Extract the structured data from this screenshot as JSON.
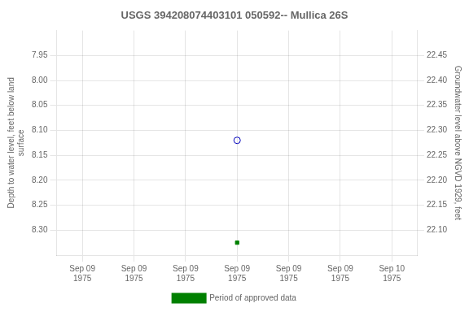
{
  "chart_data": {
    "type": "scatter",
    "title": "USGS 394208074403101 050592-- Mullica 26S",
    "y_label": "Depth to water level, feet below land\nsurface",
    "y2_label": "Groundwater level above NGVD 1929, feet",
    "categories": [
      "Sep 09\n1975",
      "Sep 09\n1975",
      "Sep 09\n1975",
      "Sep 09\n1975",
      "Sep 09\n1975",
      "Sep 09\n1975",
      "Sep 10\n1975"
    ],
    "series": [
      {
        "color": "#0000bb",
        "marker": "circle_open",
        "values": [
          null,
          null,
          null,
          8.12,
          null,
          null,
          null
        ]
      },
      {
        "name": "Period of approved data",
        "color": "#008000",
        "marker": "square",
        "values": [
          null,
          null,
          null,
          8.325,
          null,
          null,
          null
        ]
      }
    ],
    "ylim": [
      8.35,
      7.9
    ],
    "yticks": [
      7.95,
      {
        "value": 8.0,
        "label": "8.00"
      },
      8.05,
      {
        "value": 8.1,
        "label": "8.10"
      },
      8.15,
      {
        "value": 8.2,
        "label": "8.20"
      },
      8.25,
      {
        "value": 8.3,
        "label": "8.30"
      }
    ],
    "y2lim": [
      22.05,
      22.5
    ],
    "y2ticks": [
      {
        "value": 22.1,
        "label": "22.10"
      },
      22.15,
      {
        "value": 22.2,
        "label": "22.20"
      },
      22.25,
      {
        "value": 22.3,
        "label": "22.30"
      },
      22.35,
      {
        "value": 22.4,
        "label": "22.40"
      },
      22.45
    ],
    "grid": true,
    "legend": "bottom"
  }
}
